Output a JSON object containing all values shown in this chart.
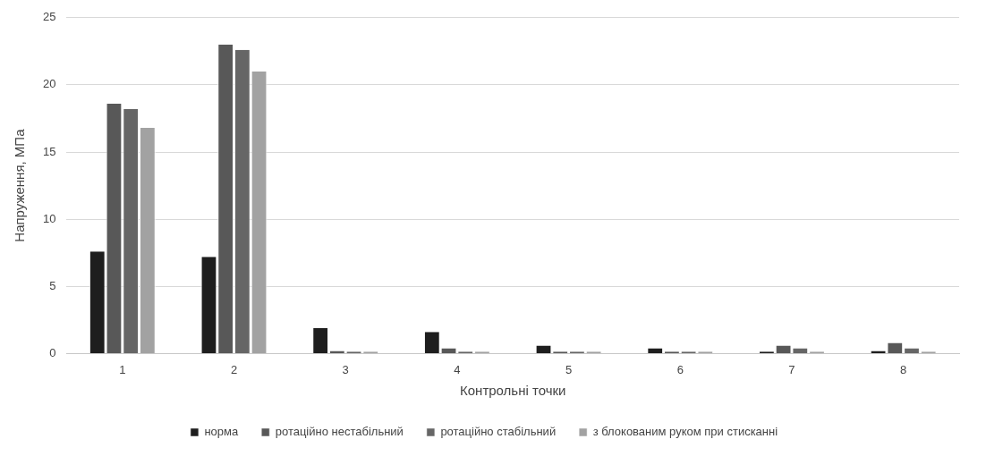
{
  "chart_data": {
    "type": "bar",
    "xlabel": "Контрольні точки",
    "ylabel": "Напруження, МПа",
    "categories": [
      "1",
      "2",
      "3",
      "4",
      "5",
      "6",
      "7",
      "8"
    ],
    "series": [
      {
        "name": "норма",
        "color": "#1e1e1e",
        "values": [
          7.6,
          7.2,
          1.9,
          1.6,
          0.6,
          0.4,
          0.15,
          0.2
        ]
      },
      {
        "name": "ротаційно нестабільний",
        "color": "#585858",
        "values": [
          18.6,
          23.0,
          0.2,
          0.4,
          0.15,
          0.15,
          0.6,
          0.8
        ]
      },
      {
        "name": "ротаційно стабільний",
        "color": "#666666",
        "values": [
          18.2,
          22.6,
          0.15,
          0.15,
          0.15,
          0.15,
          0.4,
          0.4
        ]
      },
      {
        "name": "з блокованим руком при стисканні",
        "color": "#a2a2a2",
        "values": [
          16.8,
          21.0,
          0.15,
          0.15,
          0.15,
          0.15,
          0.15,
          0.15
        ]
      }
    ],
    "ylim": [
      0,
      25
    ],
    "yticks": [
      0,
      5,
      10,
      15,
      20,
      25
    ],
    "grid": "y",
    "legend": "bottom"
  }
}
